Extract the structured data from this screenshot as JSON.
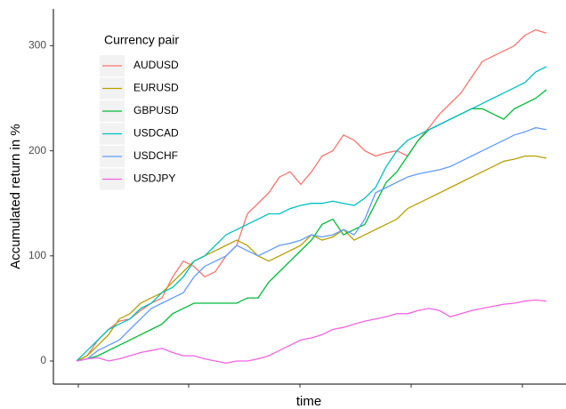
{
  "chart_data": {
    "type": "line",
    "x_label": "time",
    "y_label": "Accumulated return in %",
    "legend_title": "Currency pair",
    "legend_position": "top-left",
    "grid": false,
    "categories": [
      null,
      null,
      null,
      null,
      null,
      null,
      null,
      null,
      null,
      null,
      null,
      null,
      null,
      null,
      null,
      null,
      null,
      null,
      null,
      null,
      null,
      null,
      null,
      null,
      null,
      null,
      null,
      null,
      null,
      null,
      null,
      null,
      null,
      null,
      null,
      null,
      null,
      null,
      null,
      null,
      null,
      null,
      null,
      null,
      null
    ],
    "ylim": [
      -22,
      335
    ],
    "yticks": [
      0,
      100,
      200,
      300
    ],
    "series": [
      {
        "name": "AUDUSD",
        "color": "#F8766D",
        "values": [
          0,
          5,
          20,
          30,
          38,
          40,
          48,
          55,
          60,
          80,
          95,
          90,
          80,
          85,
          100,
          110,
          140,
          150,
          160,
          175,
          180,
          168,
          180,
          195,
          200,
          215,
          210,
          200,
          195,
          198,
          200,
          195,
          210,
          222,
          235,
          245,
          255,
          270,
          285,
          290,
          295,
          300,
          310,
          315,
          312
        ]
      },
      {
        "name": "EURUSD",
        "color": "#B79F00",
        "values": [
          0,
          5,
          15,
          25,
          40,
          45,
          55,
          60,
          65,
          75,
          85,
          95,
          100,
          105,
          110,
          115,
          110,
          100,
          95,
          100,
          105,
          110,
          120,
          115,
          118,
          125,
          115,
          120,
          125,
          130,
          135,
          145,
          150,
          155,
          160,
          165,
          170,
          175,
          180,
          185,
          190,
          192,
          195,
          195,
          193
        ]
      },
      {
        "name": "GBPUSD",
        "color": "#00BA38",
        "values": [
          0,
          2,
          5,
          10,
          15,
          20,
          25,
          30,
          35,
          45,
          50,
          55,
          55,
          55,
          55,
          55,
          60,
          60,
          75,
          85,
          95,
          105,
          115,
          130,
          135,
          120,
          125,
          130,
          150,
          170,
          180,
          195,
          210,
          220,
          225,
          230,
          235,
          240,
          240,
          235,
          230,
          240,
          245,
          250,
          258
        ]
      },
      {
        "name": "USDCAD",
        "color": "#00BFC4",
        "values": [
          0,
          10,
          20,
          30,
          35,
          40,
          50,
          55,
          65,
          70,
          80,
          95,
          100,
          110,
          120,
          125,
          130,
          135,
          140,
          140,
          145,
          148,
          150,
          150,
          152,
          150,
          148,
          155,
          165,
          185,
          200,
          210,
          215,
          220,
          225,
          230,
          235,
          240,
          245,
          250,
          255,
          260,
          265,
          275,
          280
        ]
      },
      {
        "name": "USDCHF",
        "color": "#619CFF",
        "values": [
          0,
          2,
          10,
          15,
          20,
          30,
          40,
          50,
          55,
          60,
          65,
          80,
          90,
          95,
          100,
          110,
          105,
          100,
          105,
          110,
          112,
          115,
          120,
          118,
          120,
          125,
          120,
          135,
          160,
          165,
          170,
          175,
          178,
          180,
          182,
          185,
          190,
          195,
          200,
          205,
          210,
          215,
          218,
          222,
          220
        ]
      },
      {
        "name": "USDJPY",
        "color": "#F564E3",
        "values": [
          0,
          2,
          3,
          0,
          2,
          5,
          8,
          10,
          12,
          8,
          5,
          5,
          2,
          0,
          -2,
          0,
          0,
          2,
          5,
          10,
          15,
          20,
          22,
          25,
          30,
          32,
          35,
          38,
          40,
          42,
          45,
          45,
          48,
          50,
          48,
          42,
          45,
          48,
          50,
          52,
          54,
          55,
          57,
          58,
          57
        ]
      }
    ]
  }
}
